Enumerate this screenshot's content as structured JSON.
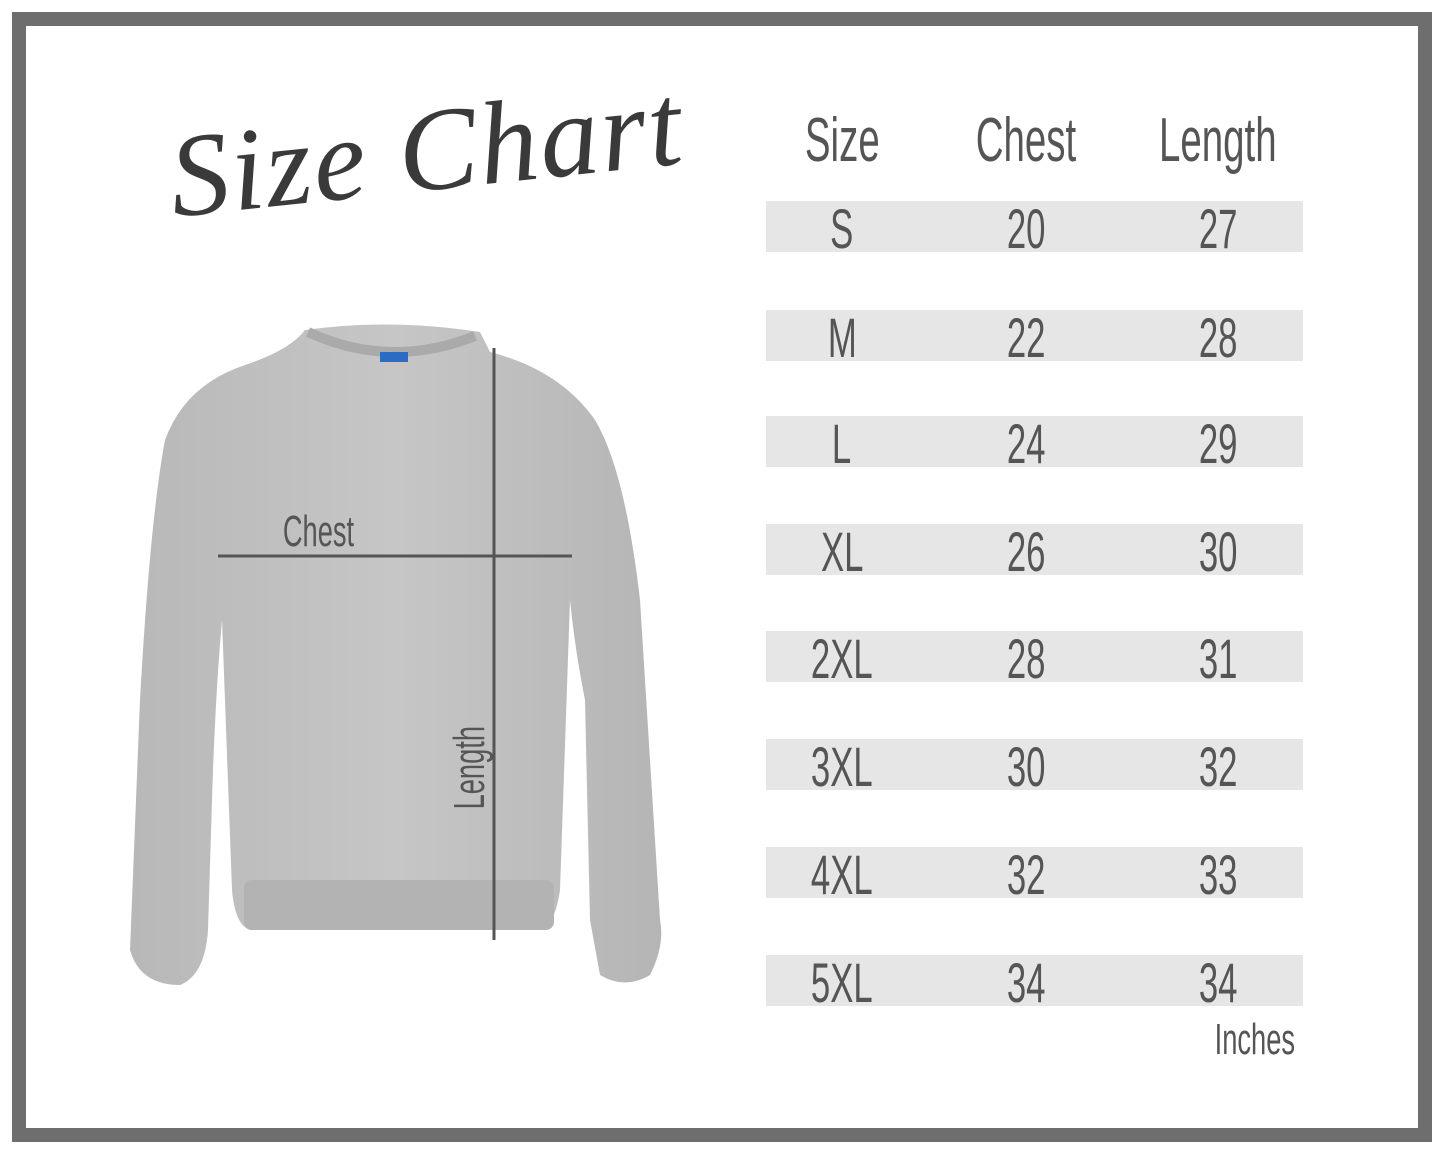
{
  "title": "Size Chart",
  "diagram": {
    "chest_label": "Chest",
    "length_label": "Length"
  },
  "table": {
    "headers": [
      "Size",
      "Chest",
      "Length"
    ],
    "rows": [
      [
        "S",
        "20",
        "27"
      ],
      [
        "M",
        "22",
        "28"
      ],
      [
        "L",
        "24",
        "29"
      ],
      [
        "XL",
        "26",
        "30"
      ],
      [
        "2XL",
        "28",
        "31"
      ],
      [
        "3XL",
        "30",
        "32"
      ],
      [
        "4XL",
        "32",
        "33"
      ],
      [
        "5XL",
        "34",
        "34"
      ]
    ],
    "unit": "Inches"
  },
  "colors": {
    "border": "#6e6e6e",
    "row_band": "#e6e6e6",
    "text": "#555555",
    "garment": "#bdbdbd"
  }
}
